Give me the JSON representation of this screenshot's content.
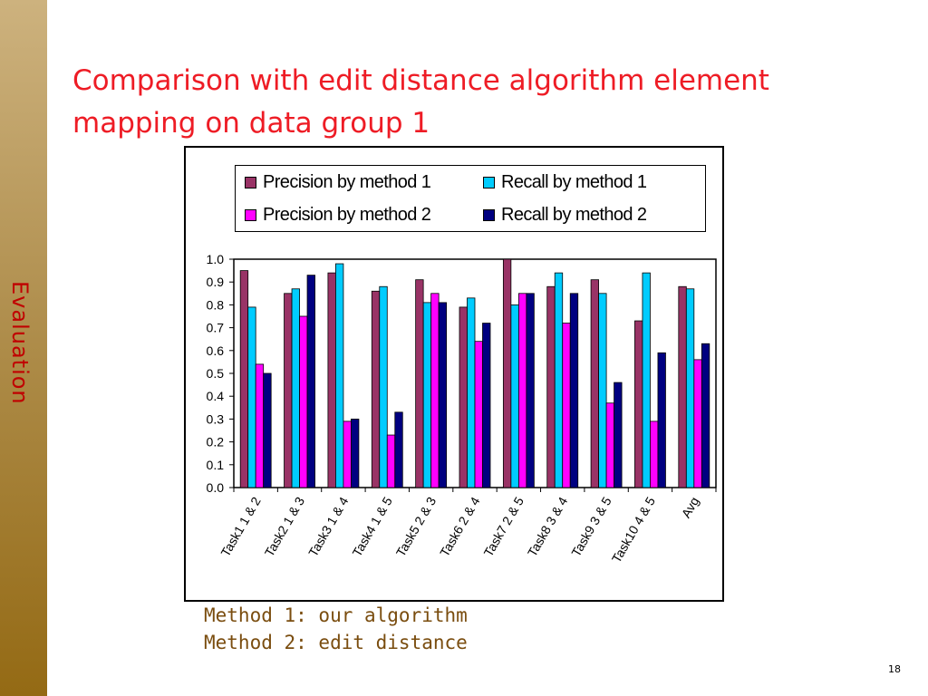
{
  "slide": {
    "section_label": "Evaluation",
    "title_line1": "Comparison with edit distance algorithm element",
    "title_line2": "mapping on data group 1",
    "notes": [
      "Method 1: our algorithm",
      "Method 2: edit distance"
    ],
    "page_number": "18"
  },
  "chart_data": {
    "type": "bar",
    "title": "",
    "xlabel": "",
    "ylabel": "",
    "ylim": [
      0,
      1.0
    ],
    "yticks": [
      "0.0",
      "0.1",
      "0.2",
      "0.3",
      "0.4",
      "0.5",
      "0.6",
      "0.7",
      "0.8",
      "0.9",
      "1.0"
    ],
    "grid": false,
    "legend_position": "top",
    "categories": [
      "Task1 1 & 2",
      "Task2 1 & 3",
      "Task3 1 & 4",
      "Task4 1 & 5",
      "Task5 2 & 3",
      "Task6 2 & 4",
      "Task7 2 & 5",
      "Task8 3 & 4",
      "Task9 3 & 5",
      "Task10 4 & 5",
      "Avg"
    ],
    "series": [
      {
        "name": "Precision by method 1",
        "color": "#993366",
        "values": [
          0.95,
          0.85,
          0.94,
          0.86,
          0.91,
          0.79,
          1.0,
          0.88,
          0.91,
          0.73,
          0.88
        ]
      },
      {
        "name": "Recall by method 1",
        "color": "#00ccff",
        "values": [
          0.79,
          0.87,
          0.98,
          0.88,
          0.81,
          0.83,
          0.8,
          0.94,
          0.85,
          0.94,
          0.87
        ]
      },
      {
        "name": "Precision by method 2",
        "color": "#ff00ff",
        "values": [
          0.54,
          0.75,
          0.29,
          0.23,
          0.85,
          0.64,
          0.85,
          0.72,
          0.37,
          0.29,
          0.56
        ]
      },
      {
        "name": "Recall by method 2",
        "color": "#000080",
        "values": [
          0.5,
          0.93,
          0.3,
          0.33,
          0.81,
          0.72,
          0.85,
          0.85,
          0.46,
          0.59,
          0.63
        ]
      }
    ]
  }
}
